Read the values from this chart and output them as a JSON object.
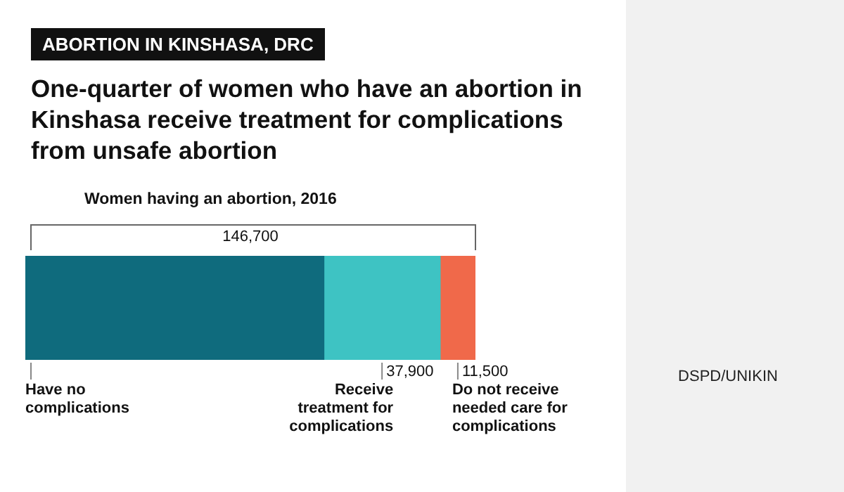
{
  "chart_data": {
    "type": "bar",
    "orientation": "horizontal",
    "stacked": true,
    "title": "One-quarter of women who have an abortion in Kinshasa receive treatment for complications from unsafe abortion",
    "subtitle": "Women having an abortion, 2016",
    "annotations": [
      "ABORTION IN KINSHASA, DRC",
      "DSPD/UNIKIN"
    ],
    "categories": [
      null
    ],
    "series": [
      {
        "name": "Have no complications",
        "color": "#0f6b7d",
        "values": [
          97300
        ]
      },
      {
        "name": "Receive treatment for complications",
        "color": "#3ec3c3",
        "values": [
          37900
        ],
        "value_labels": [
          "37,900"
        ]
      },
      {
        "name": "Do not receive needed care for complications",
        "color": "#f0694a",
        "values": [
          11500
        ],
        "value_labels": [
          "11,500"
        ]
      }
    ],
    "totals": [
      "146,700"
    ],
    "legend": false,
    "grid": false
  }
}
